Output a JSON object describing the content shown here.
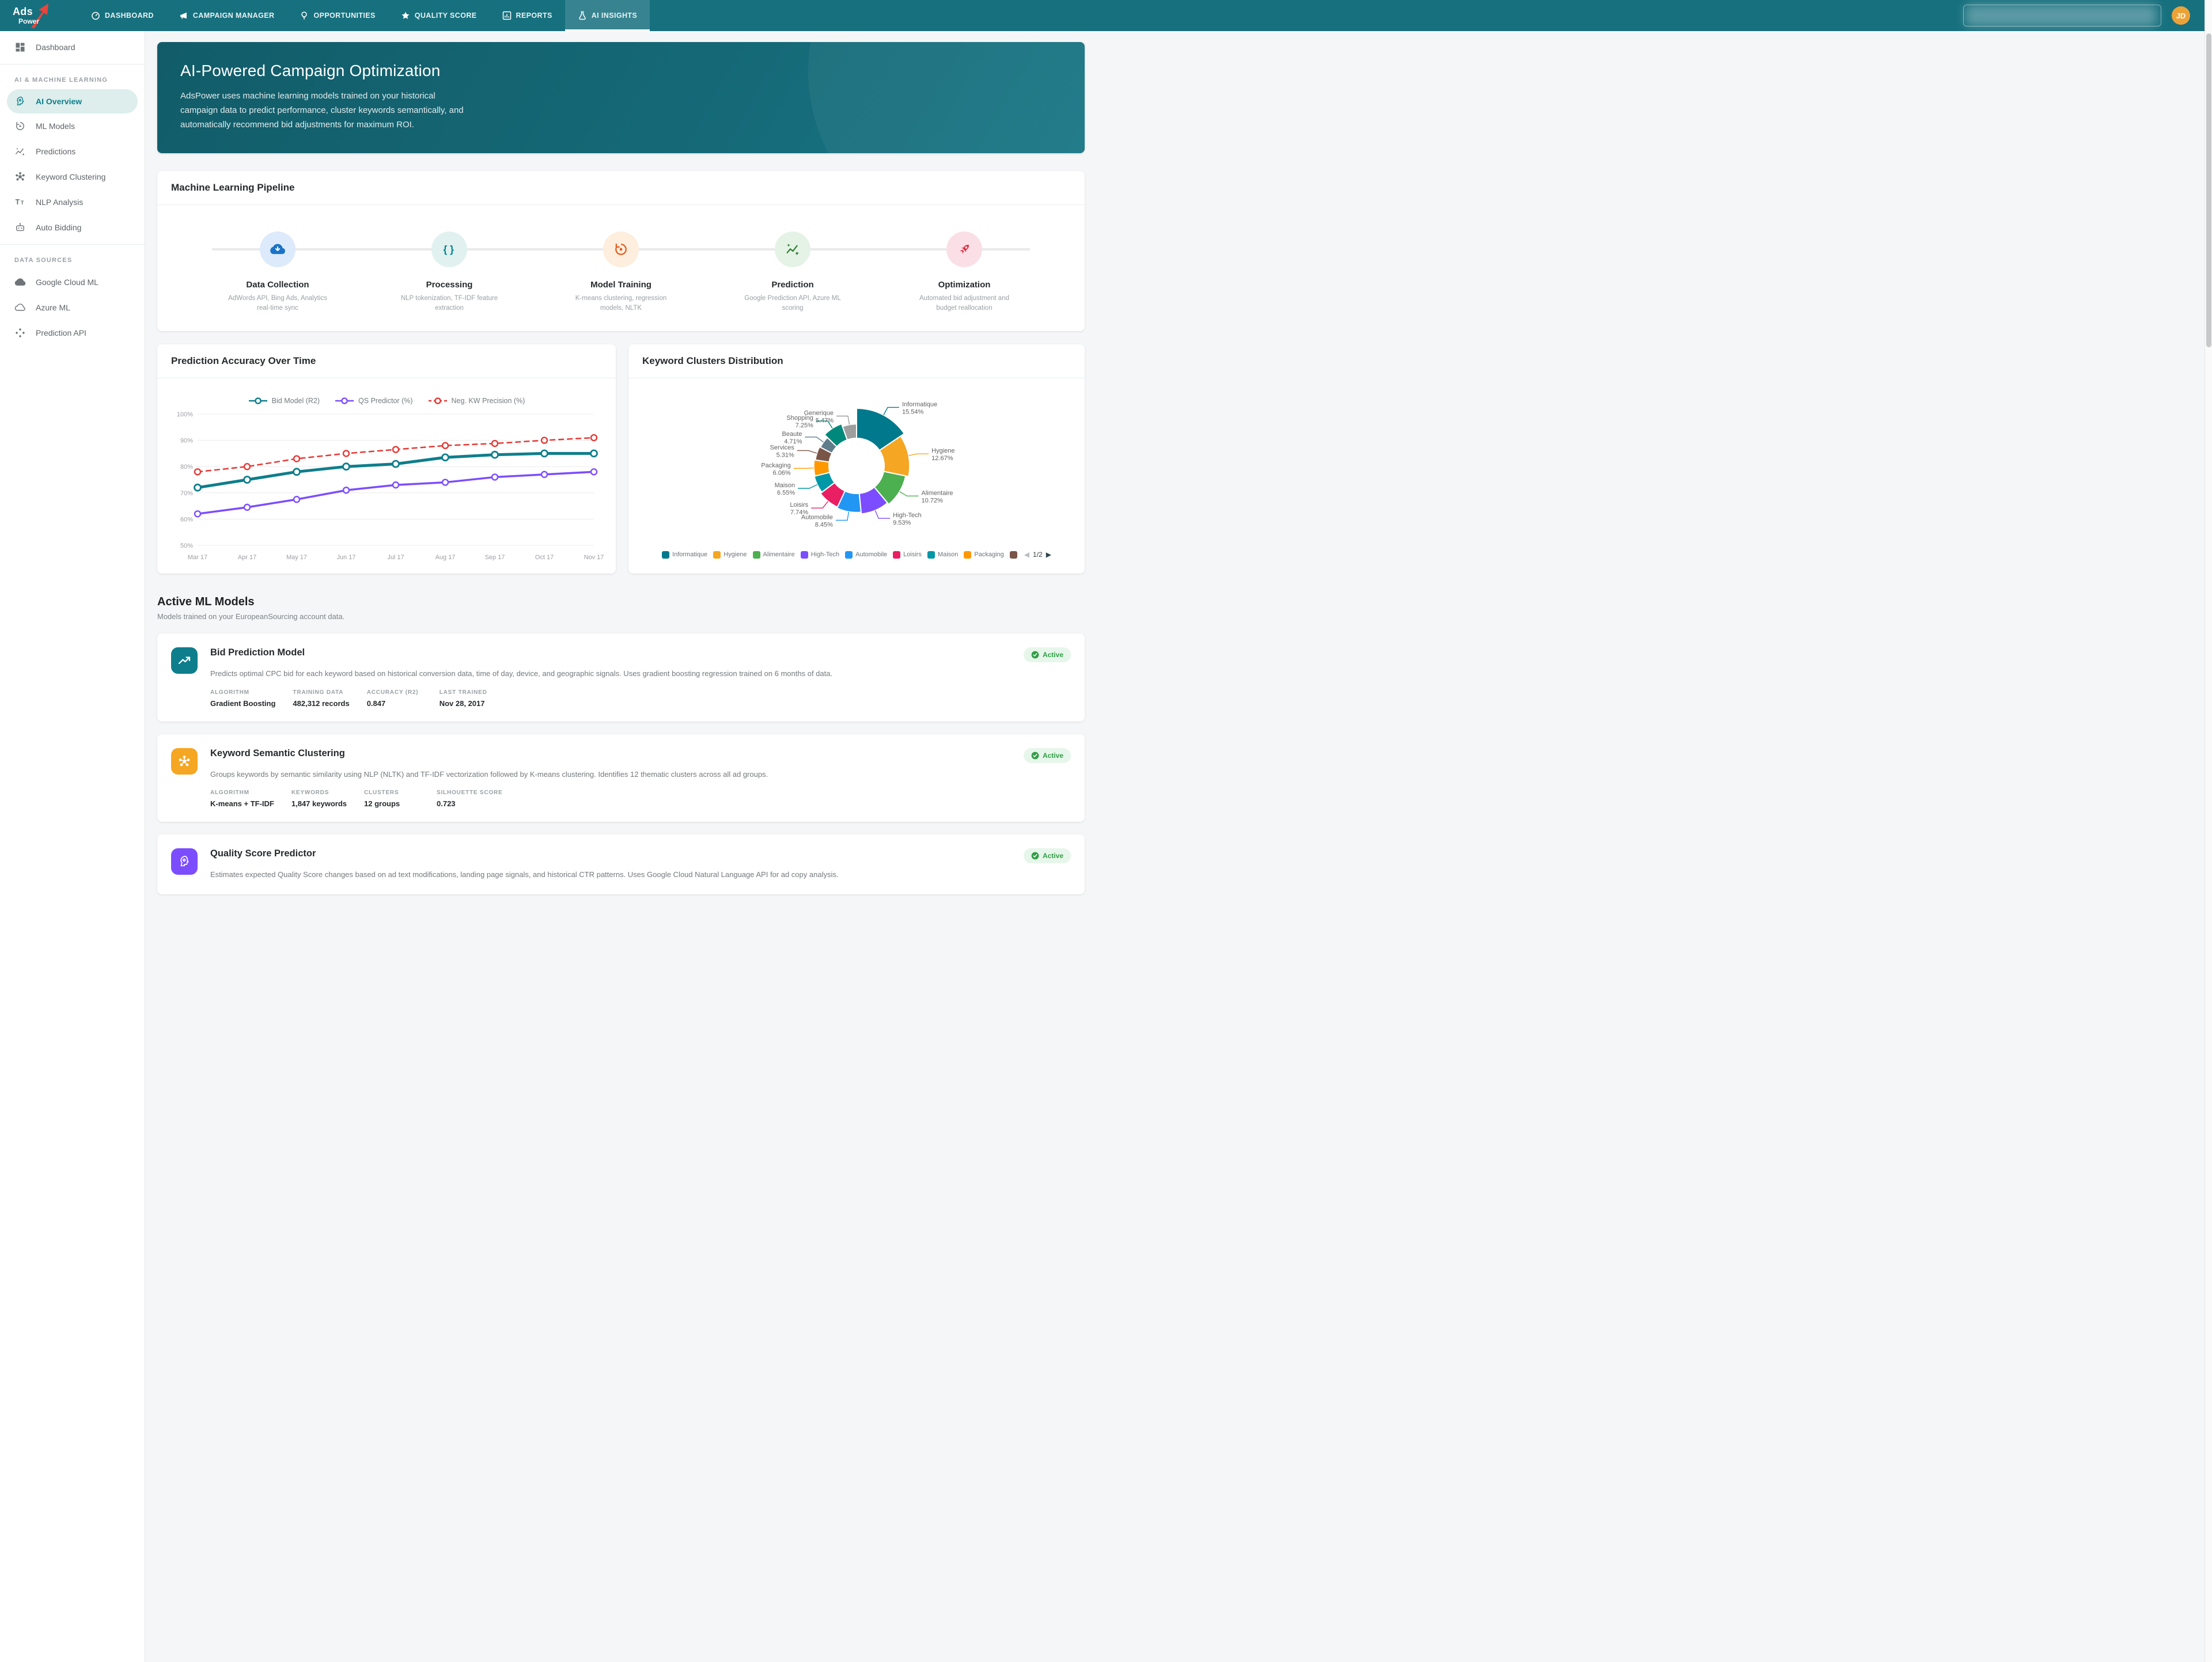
{
  "nav": {
    "logo": {
      "line1": "Ads",
      "line2": "Power"
    },
    "items": [
      {
        "label": "DASHBOARD",
        "icon": "gauge-icon"
      },
      {
        "label": "CAMPAIGN MANAGER",
        "icon": "megaphone-icon"
      },
      {
        "label": "OPPORTUNITIES",
        "icon": "lightbulb-icon"
      },
      {
        "label": "QUALITY SCORE",
        "icon": "star-icon"
      },
      {
        "label": "REPORTS",
        "icon": "bar-chart-icon"
      },
      {
        "label": "AI INSIGHTS",
        "icon": "flask-icon"
      }
    ],
    "avatar_initials": "JD"
  },
  "sidebar": {
    "dashboard": "Dashboard",
    "sections": [
      {
        "label": "AI & MACHINE LEARNING",
        "items": [
          {
            "label": "AI Overview"
          },
          {
            "label": "ML Models"
          },
          {
            "label": "Predictions"
          },
          {
            "label": "Keyword Clustering"
          },
          {
            "label": "NLP Analysis"
          },
          {
            "label": "Auto Bidding"
          }
        ]
      },
      {
        "label": "DATA SOURCES",
        "items": [
          {
            "label": "Google Cloud ML"
          },
          {
            "label": "Azure ML"
          },
          {
            "label": "Prediction API"
          }
        ]
      }
    ]
  },
  "hero": {
    "title": "AI-Powered Campaign Optimization",
    "description": "AdsPower uses machine learning models trained on your historical campaign data to predict performance, cluster keywords semantically, and automatically recommend bid adjustments for maximum ROI."
  },
  "pipeline": {
    "title": "Machine Learning Pipeline",
    "steps": [
      {
        "name": "Data Collection",
        "desc": "AdWords API, Bing Ads, Analytics real-time sync",
        "color": "#1a73c8",
        "bg": "#ddeafb"
      },
      {
        "name": "Processing",
        "desc": "NLP tokenization, TF-IDF feature extraction",
        "color": "#00838f",
        "bg": "#e0f1f0"
      },
      {
        "name": "Model Training",
        "desc": "K-means clustering, regression models, NLTK",
        "color": "#e05a1e",
        "bg": "#fdeedd"
      },
      {
        "name": "Prediction",
        "desc": "Google Prediction API, Azure ML scoring",
        "color": "#2e7d32",
        "bg": "#e5f3e6"
      },
      {
        "name": "Optimization",
        "desc": "Automated bid adjustment and budget reallocation",
        "color": "#e0344a",
        "bg": "#fbdfe6"
      }
    ]
  },
  "charts": {
    "accuracy": {
      "title": "Prediction Accuracy Over Time"
    },
    "clusters": {
      "title": "Keyword Clusters Distribution",
      "pagination": "1/2"
    }
  },
  "chart_data": [
    {
      "type": "line",
      "title": "Prediction Accuracy Over Time",
      "x": [
        "Mar 17",
        "Apr 17",
        "May 17",
        "Jun 17",
        "Jul 17",
        "Aug 17",
        "Sep 17",
        "Oct 17",
        "Nov 17"
      ],
      "series": [
        {
          "name": "Bid Model (R2)",
          "color": "#0e7e8c",
          "dash": false,
          "values": [
            72,
            75,
            78,
            80,
            81,
            83.5,
            84.5,
            85,
            85
          ]
        },
        {
          "name": "QS Predictor (%)",
          "color": "#7c4dff",
          "dash": false,
          "values": [
            62,
            64.5,
            67.5,
            71,
            73,
            74,
            76,
            77,
            78
          ]
        },
        {
          "name": "Neg. KW Precision (%)",
          "color": "#e53935",
          "dash": true,
          "values": [
            78,
            80,
            83,
            85,
            86.5,
            88,
            88.8,
            90,
            91
          ]
        }
      ],
      "ylim": [
        50,
        100
      ],
      "yticks": [
        50,
        60,
        70,
        80,
        90,
        100
      ],
      "ytick_suffix": "%",
      "grid": true,
      "legend_position": "top-center"
    },
    {
      "type": "donut",
      "title": "Keyword Clusters Distribution",
      "slices": [
        {
          "name": "Informatique",
          "value": 15.54,
          "color": "#00798c"
        },
        {
          "name": "Hygiene",
          "value": 12.67,
          "color": "#f5a623"
        },
        {
          "name": "Alimentaire",
          "value": 10.72,
          "color": "#4caf50"
        },
        {
          "name": "High-Tech",
          "value": 9.53,
          "color": "#7c4dff"
        },
        {
          "name": "Automobile",
          "value": 8.45,
          "color": "#2196f3"
        },
        {
          "name": "Loisirs",
          "value": 7.74,
          "color": "#e91e63"
        },
        {
          "name": "Maison",
          "value": 6.55,
          "color": "#0097a7"
        },
        {
          "name": "Packaging",
          "value": 6.06,
          "color": "#ff9800"
        },
        {
          "name": "Services",
          "value": 5.31,
          "color": "#795548"
        },
        {
          "name": "Beaute",
          "value": 4.71,
          "color": "#607d8b"
        },
        {
          "name": "Shopping",
          "value": 7.25,
          "color": "#00897b"
        },
        {
          "name": "Generique",
          "value": 5.47,
          "color": "#9e9e9e"
        }
      ],
      "label_format": "name + percent",
      "legend_visible_count": 8,
      "legend_pagination": "1/2"
    }
  ],
  "models": {
    "heading": "Active ML Models",
    "subheading": "Models trained on your EuropeanSourcing account data.",
    "cards": [
      {
        "title": "Bid Prediction Model",
        "status": "Active",
        "icon_color": "#0e7e8c",
        "description": "Predicts optimal CPC bid for each keyword based on historical conversion data, time of day, device, and geographic signals. Uses gradient boosting regression trained on 6 months of data.",
        "stats": [
          {
            "label": "ALGORITHM",
            "value": "Gradient Boosting"
          },
          {
            "label": "TRAINING DATA",
            "value": "482,312 records"
          },
          {
            "label": "ACCURACY (R2)",
            "value": "0.847"
          },
          {
            "label": "LAST TRAINED",
            "value": "Nov 28, 2017"
          }
        ]
      },
      {
        "title": "Keyword Semantic Clustering",
        "status": "Active",
        "icon_color": "#f5a623",
        "description": "Groups keywords by semantic similarity using NLP (NLTK) and TF-IDF vectorization followed by K-means clustering. Identifies 12 thematic clusters across all ad groups.",
        "stats": [
          {
            "label": "ALGORITHM",
            "value": "K-means + TF-IDF"
          },
          {
            "label": "KEYWORDS",
            "value": "1,847 keywords"
          },
          {
            "label": "CLUSTERS",
            "value": "12 groups"
          },
          {
            "label": "SILHOUETTE SCORE",
            "value": "0.723"
          }
        ]
      },
      {
        "title": "Quality Score Predictor",
        "status": "Active",
        "icon_color": "#7c4dff",
        "description": "Estimates expected Quality Score changes based on ad text modifications, landing page signals, and historical CTR patterns. Uses Google Cloud Natural Language API for ad copy analysis.",
        "stats": []
      }
    ]
  }
}
